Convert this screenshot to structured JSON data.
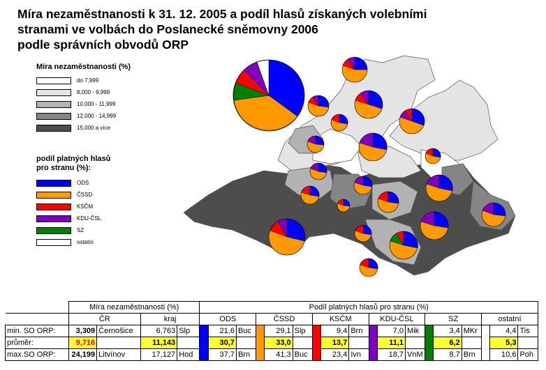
{
  "title": {
    "line1": "Míra nezaměstnanosti k 31. 12. 2005 a podíl hlasů získaných volebními",
    "line2": "stranami ve volbách do Poslanecké sněmovny 2006",
    "line3": "podle správních obvodů ORP"
  },
  "legend_unemployment": {
    "heading": "Míra nezaměstnanosti (%)",
    "items": [
      {
        "label": "do 7,999",
        "color": "#ffffff"
      },
      {
        "label": "8,000 -   9,999",
        "color": "#e4e4e4"
      },
      {
        "label": "10,000 - 11,999",
        "color": "#b2b2b2"
      },
      {
        "label": "12,000 - 14,999",
        "color": "#858585"
      },
      {
        "label": "15,000 a více",
        "color": "#4d4d4d"
      }
    ]
  },
  "legend_parties": {
    "heading1": "podíl platných hlasů",
    "heading2": "pro stranu (%):",
    "items": [
      {
        "label": "ODS",
        "color": "#0000ff"
      },
      {
        "label": "ČSSD",
        "color": "#ff9900"
      },
      {
        "label": "KSČM",
        "color": "#ff0000"
      },
      {
        "label": "KDU-ČSL",
        "color": "#7f00bf"
      },
      {
        "label": "SZ",
        "color": "#008000"
      },
      {
        "label": "ostatní",
        "color": "#ffffff"
      }
    ]
  },
  "table": {
    "group_unemp": "Míra nezaměstnanosti (%)",
    "group_votes": "Podíl platných hlasů pro stranu (%)",
    "col_cr": "ČR",
    "col_kraj": "kraj",
    "parties": [
      "ODS",
      "ČSSD",
      "KSČM",
      "KDU-ČSL",
      "SZ",
      "ostatní"
    ],
    "rows": [
      {
        "label": "min. SO ORP:",
        "cr_value": "3,309",
        "cr_place": "Černošice",
        "kraj_value": "6,763",
        "kraj_place": "Slp",
        "votes": [
          [
            "21,6",
            "Buc"
          ],
          [
            "29,1",
            "Slp"
          ],
          [
            "9,4",
            "Brn"
          ],
          [
            "7,0",
            "Mik"
          ],
          [
            "3,4",
            "MKr"
          ],
          [
            "4,4",
            "Tis"
          ]
        ]
      },
      {
        "label": "průměr:",
        "cr_value": "9,716",
        "kraj_value": "11,143",
        "votes": [
          [
            "30,7",
            ""
          ],
          [
            "33,0",
            ""
          ],
          [
            "13,7",
            ""
          ],
          [
            "11,1",
            ""
          ],
          [
            "6,2",
            ""
          ],
          [
            "5,3",
            ""
          ]
        ]
      },
      {
        "label": "max.SO ORP:",
        "cr_value": "24,199",
        "cr_place": "Litvínov",
        "kraj_value": "17,127",
        "kraj_place": "Hod",
        "votes": [
          [
            "37,7",
            "Brn"
          ],
          [
            "41,3",
            "Buc"
          ],
          [
            "23,4",
            "Ivn"
          ],
          [
            "18,7",
            "VnM"
          ],
          [
            "8,7",
            "Brn"
          ],
          [
            "10,6",
            "Poh"
          ]
        ]
      }
    ]
  }
}
